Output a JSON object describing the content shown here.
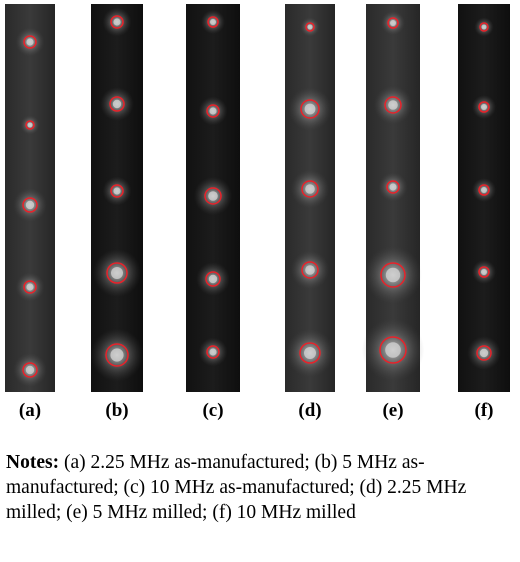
{
  "panels": [
    {
      "label": "(a)"
    },
    {
      "label": "(b)"
    },
    {
      "label": "(c)"
    },
    {
      "label": "(d)"
    },
    {
      "label": "(e)"
    },
    {
      "label": "(f)"
    }
  ],
  "notes": {
    "label": "Notes:",
    "text": "(a) 2.25 MHz as-manufactured; (b) 5 MHz as-manufactured; (c) 10 MHz as-manufactured; (d) 2.25 MHz milled; (e) 5 MHz milled; (f) 10 MHz milled"
  }
}
